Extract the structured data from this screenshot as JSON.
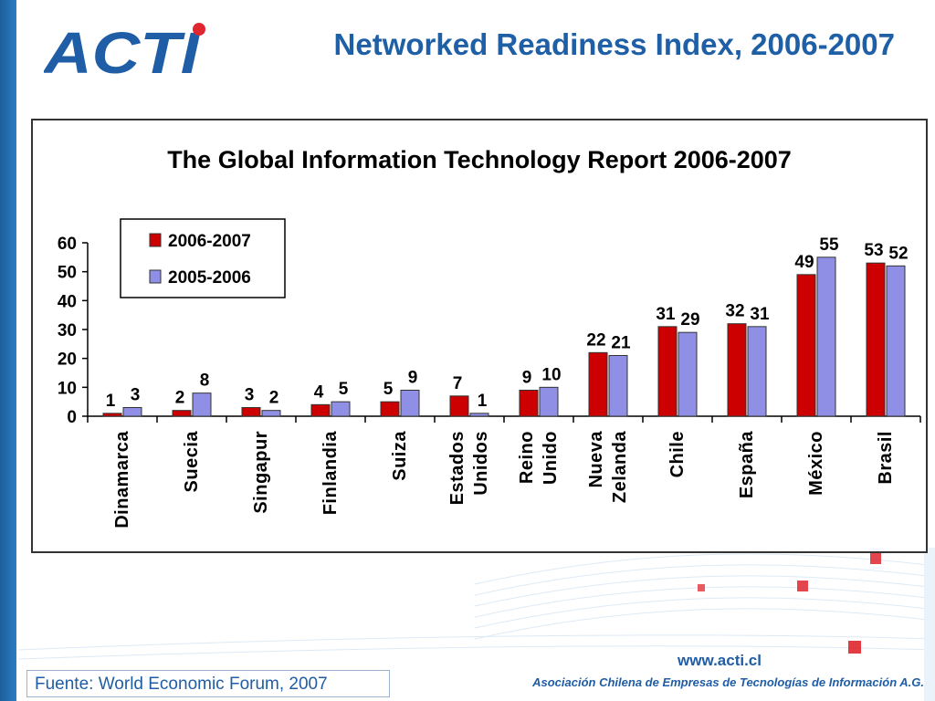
{
  "logo": {
    "text": "ACTI",
    "dot_color": "#e0262e",
    "text_color": "#1f5da6"
  },
  "slide_title": "Networked Readiness Index, 2006-2007",
  "footer": {
    "source": "Fuente: World Economic Forum, 2007",
    "url": "www.acti.cl",
    "org": "Asociación Chilena de Empresas de Tecnologías de Información A.G."
  },
  "chart_data": {
    "type": "bar",
    "title": "The Global Information Technology Report 2006-2007",
    "categories": [
      [
        "Dinamarca"
      ],
      [
        "Suecia"
      ],
      [
        "Singapur"
      ],
      [
        "Finlandia"
      ],
      [
        "Suiza"
      ],
      [
        "Estados",
        "Unidos"
      ],
      [
        "Reino",
        "Unido"
      ],
      [
        "Nueva",
        "Zelanda"
      ],
      [
        "Chile"
      ],
      [
        "España"
      ],
      [
        "México"
      ],
      [
        "Brasil"
      ]
    ],
    "series": [
      {
        "name": "2006-2007",
        "color": "#cc0000",
        "values": [
          1,
          2,
          3,
          4,
          5,
          7,
          9,
          22,
          31,
          32,
          49,
          53
        ]
      },
      {
        "name": "2005-2006",
        "color": "#8f8fe6",
        "values": [
          3,
          8,
          2,
          5,
          9,
          1,
          10,
          21,
          29,
          31,
          55,
          52
        ]
      }
    ],
    "ylim": [
      0,
      60
    ],
    "yticks": [
      0,
      10,
      20,
      30,
      40,
      50,
      60
    ],
    "legend": "top-left",
    "grid": false
  }
}
